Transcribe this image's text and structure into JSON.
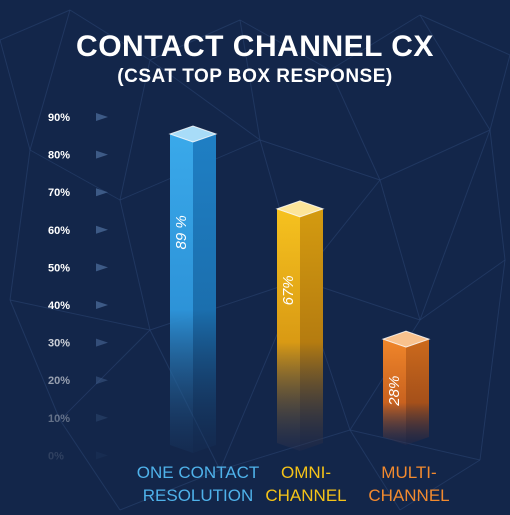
{
  "chart_data": {
    "type": "bar",
    "title": "CONTACT CHANNEL CX",
    "subtitle": "(CSAT TOP BOX RESPONSE)",
    "categories": [
      "ONE CONTACT\nRESOLUTION",
      "OMNI-\nCHANNEL",
      "MULTI-\nCHANNEL"
    ],
    "values": [
      89,
      67,
      28
    ],
    "data_labels": [
      "89 %",
      "67%",
      "28%"
    ],
    "yticks": [
      "90%",
      "80%",
      "70%",
      "60%",
      "50%",
      "40%",
      "30%",
      "20%",
      "10%",
      "0%"
    ],
    "ylim": [
      0,
      90
    ],
    "grid": false,
    "legend": "none",
    "colors": {
      "background": "#13264a",
      "bar1": "#3ba8e6",
      "bar2": "#f2b51a",
      "bar3": "#ee8026",
      "tick_label": "#ffffff",
      "tick_marker": "#3d5a86"
    }
  }
}
